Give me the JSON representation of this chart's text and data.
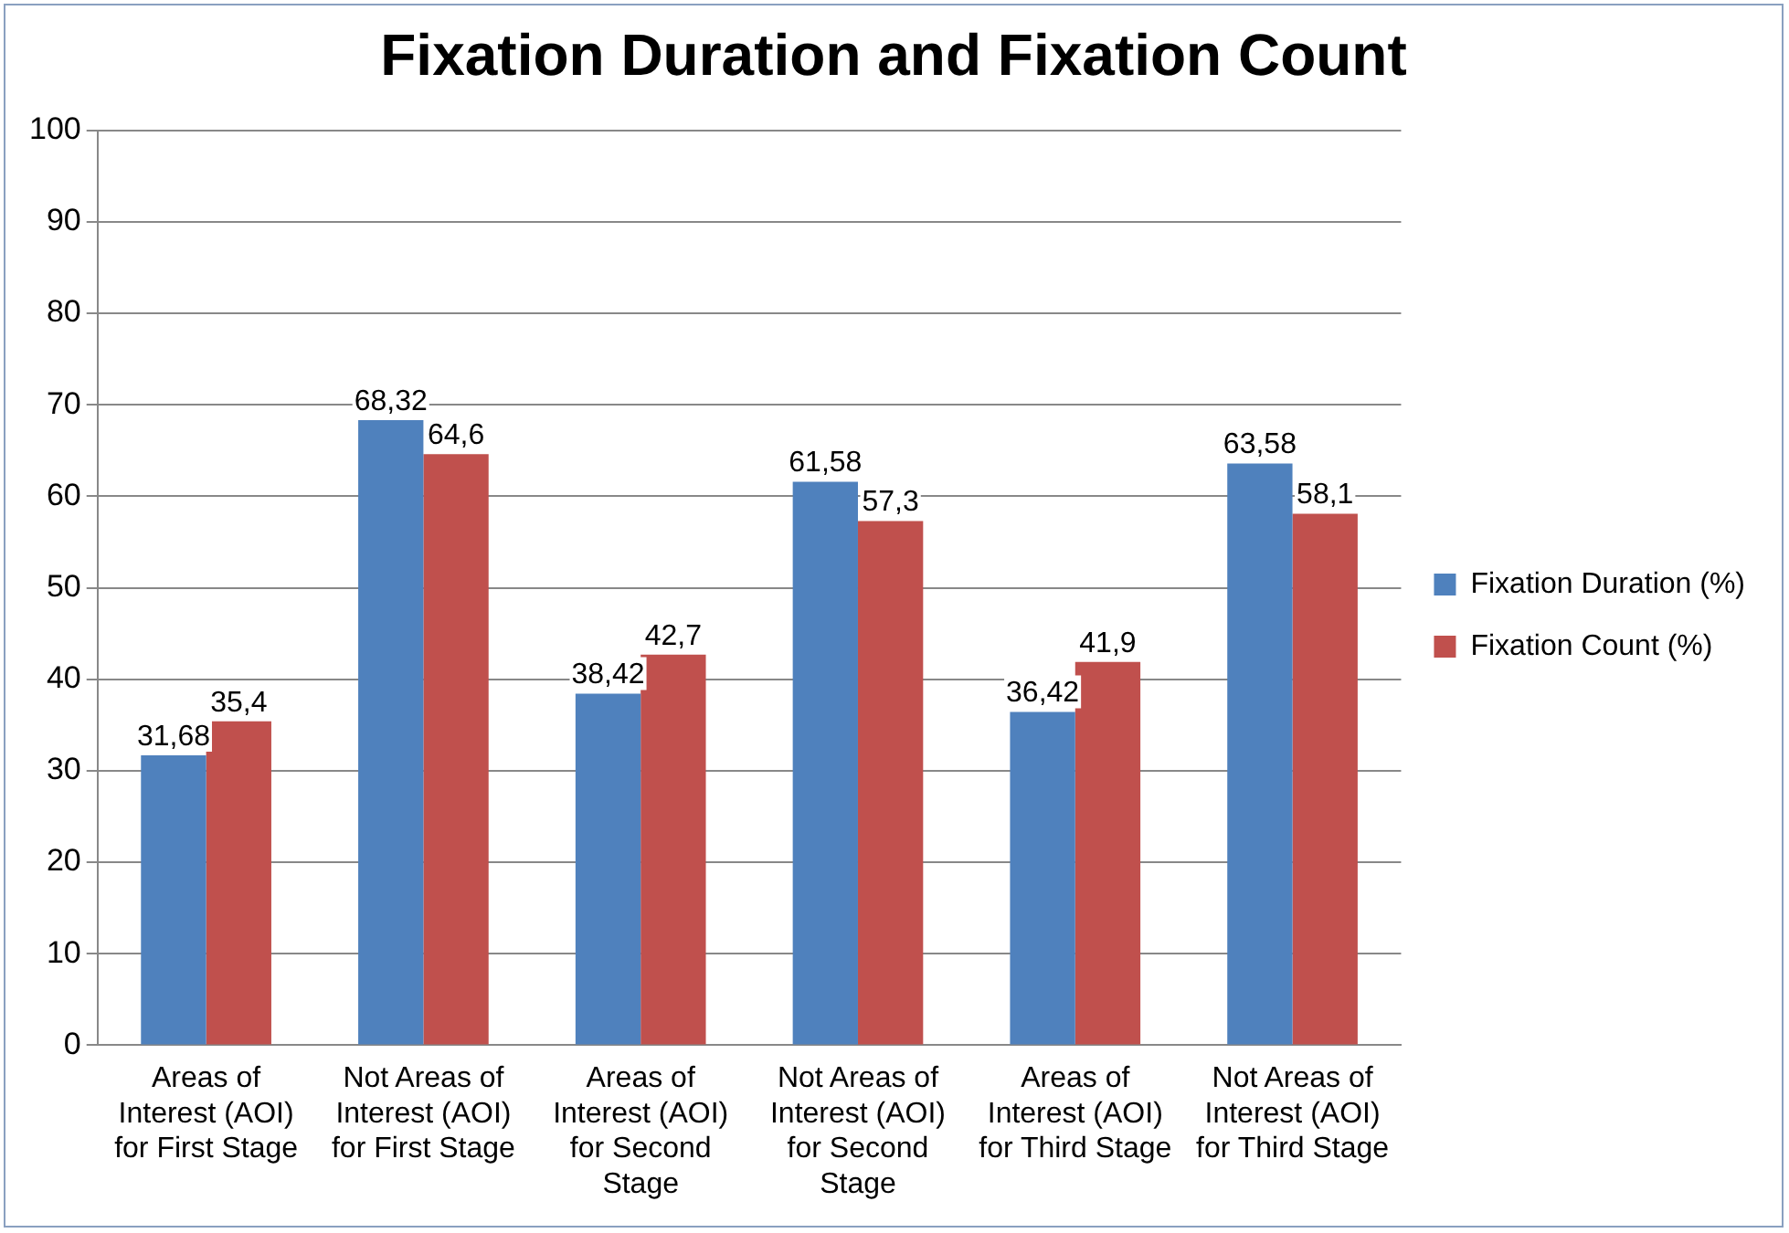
{
  "chart_data": {
    "type": "bar",
    "title": "Fixation Duration and Fixation Count",
    "categories": [
      "Areas of Interest (AOI) for First Stage",
      "Not Areas of Interest (AOI) for First Stage",
      "Areas of Interest (AOI) for Second Stage",
      "Not Areas of Interest (AOI) for Second Stage",
      "Areas of Interest (AOI) for Third Stage",
      "Not Areas of Interest (AOI) for Third Stage"
    ],
    "series": [
      {
        "name": "Fixation Duration (%)",
        "color": "#4f81bd",
        "values": [
          31.68,
          68.32,
          38.42,
          61.58,
          36.42,
          63.58
        ],
        "value_labels": [
          "31,68",
          "68,32",
          "38,42",
          "61,58",
          "36,42",
          "63,58"
        ]
      },
      {
        "name": "Fixation Count (%)",
        "color": "#c0504d",
        "values": [
          35.4,
          64.6,
          42.7,
          57.3,
          41.9,
          58.1
        ],
        "value_labels": [
          "35,4",
          "64,6",
          "42,7",
          "57,3",
          "41,9",
          "58,1"
        ]
      }
    ],
    "ylim": [
      0,
      100
    ],
    "yticks": [
      0,
      10,
      20,
      30,
      40,
      50,
      60,
      70,
      80,
      90,
      100
    ],
    "grid": "y",
    "legend": "right"
  }
}
